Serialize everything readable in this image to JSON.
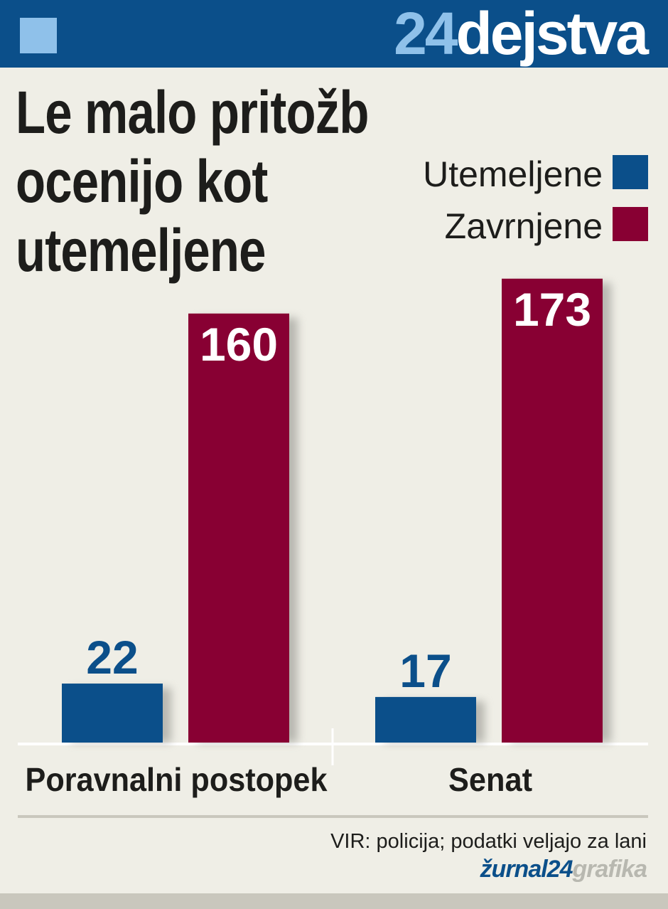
{
  "chart_data": {
    "type": "bar",
    "brand": {
      "number": "24",
      "word": "dejstva"
    },
    "title": "Le malo pritožb ocenijo kot utemeljene",
    "categories": [
      "Poravnalni postopek",
      "Senat"
    ],
    "series": [
      {
        "name": "Utemeljene",
        "color": "#0b4f8a",
        "values": [
          22,
          17
        ]
      },
      {
        "name": "Zavrnjene",
        "color": "#880033",
        "values": [
          160,
          173
        ]
      }
    ],
    "source": "VIR: policija; podatki veljajo za lani",
    "credit": {
      "brand": "žurnal24",
      "word": "grafika"
    }
  }
}
